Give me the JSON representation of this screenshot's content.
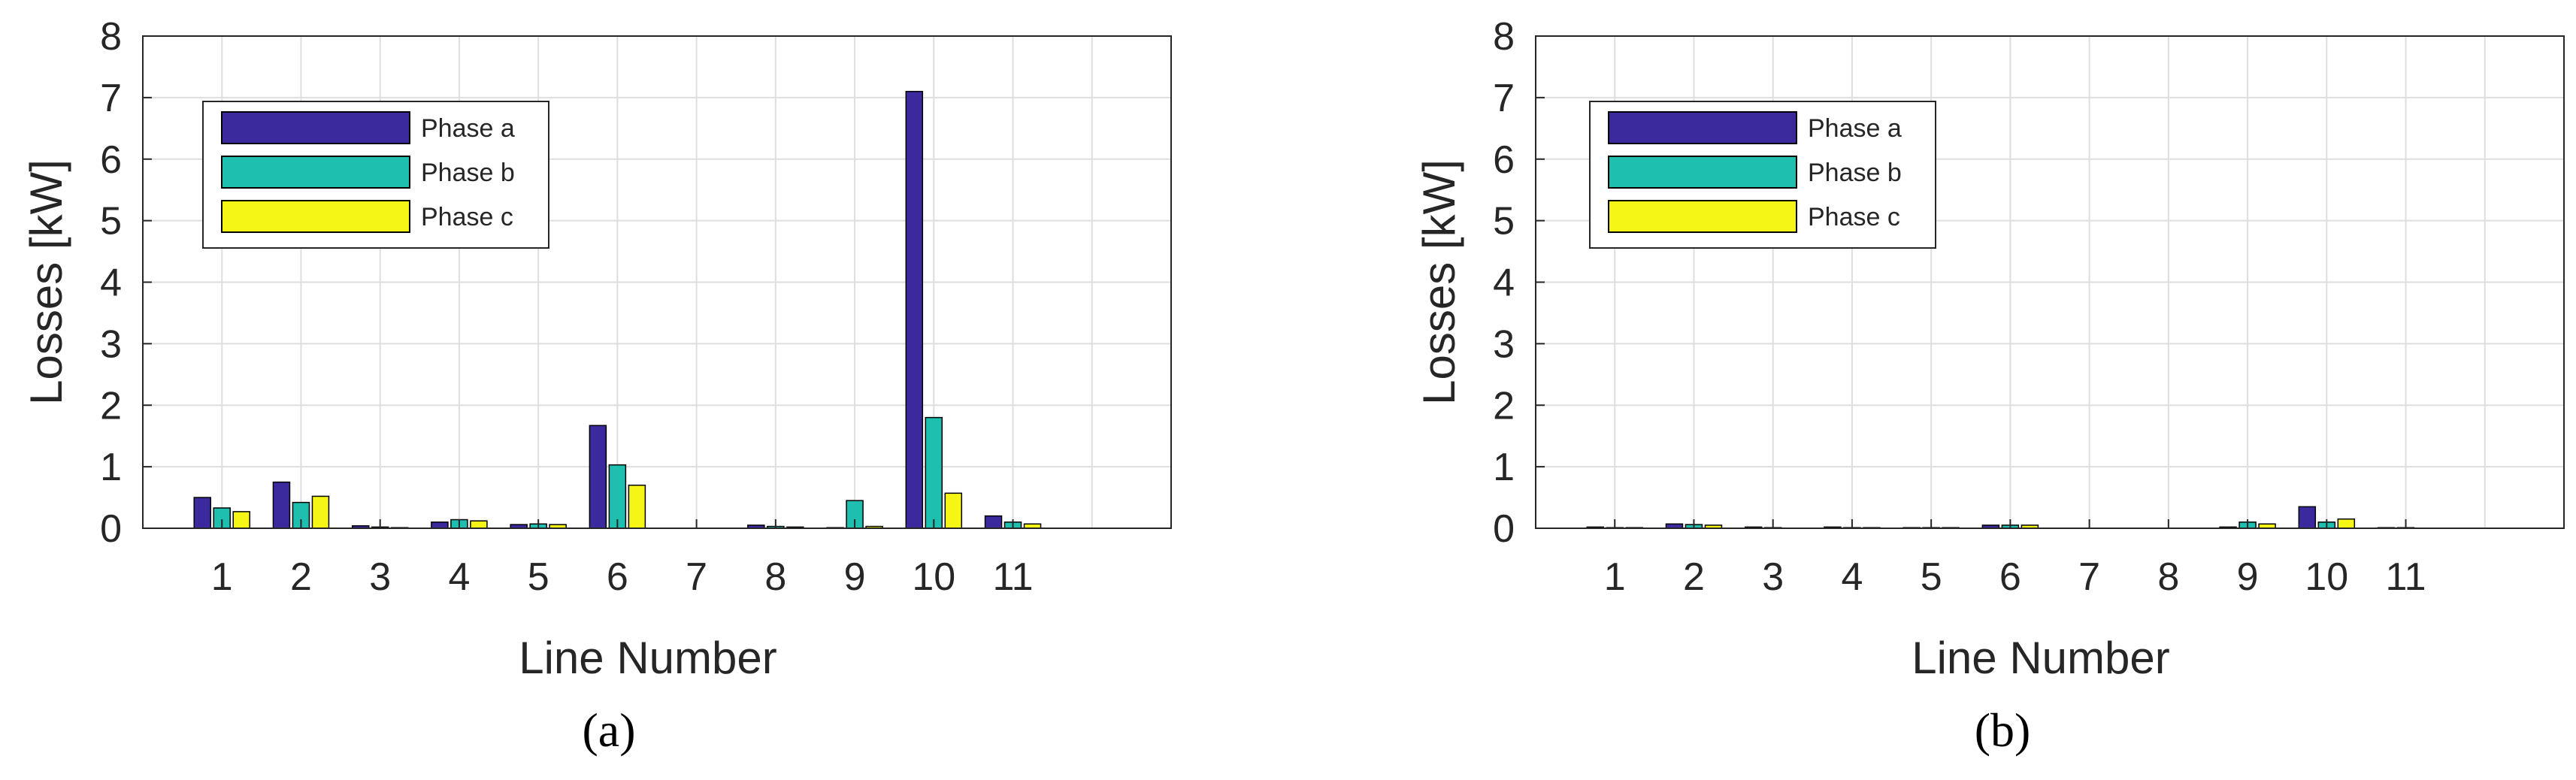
{
  "chart_data": [
    {
      "type": "bar",
      "panel_label": "(a)",
      "xlabel": "Line Number",
      "ylabel": "Losses [kW]",
      "ylim": [
        0,
        8
      ],
      "yticks": [
        "0",
        "1",
        "2",
        "3",
        "4",
        "5",
        "6",
        "7",
        "8"
      ],
      "categories": [
        "1",
        "2",
        "3",
        "4",
        "5",
        "6",
        "7",
        "8",
        "9",
        "10",
        "11"
      ],
      "grid": true,
      "legend_position": "top-left",
      "series": [
        {
          "name": "Phase a",
          "color": "#3a2a9e",
          "values": [
            0.5,
            0.75,
            0.04,
            0.1,
            0.06,
            1.67,
            0.0,
            0.05,
            0.01,
            7.1,
            0.2
          ]
        },
        {
          "name": "Phase b",
          "color": "#1fbfb0",
          "values": [
            0.33,
            0.42,
            0.02,
            0.14,
            0.07,
            1.03,
            0.0,
            0.03,
            0.45,
            1.8,
            0.1
          ]
        },
        {
          "name": "Phase c",
          "color": "#f5f516",
          "values": [
            0.27,
            0.52,
            0.01,
            0.12,
            0.06,
            0.7,
            0.0,
            0.02,
            0.03,
            0.57,
            0.07
          ]
        }
      ]
    },
    {
      "type": "bar",
      "panel_label": "(b)",
      "xlabel": "Line Number",
      "ylabel": "Losses [kW]",
      "ylim": [
        0,
        8
      ],
      "yticks": [
        "0",
        "1",
        "2",
        "3",
        "4",
        "5",
        "6",
        "7",
        "8"
      ],
      "categories": [
        "1",
        "2",
        "3",
        "4",
        "5",
        "6",
        "7",
        "8",
        "9",
        "10",
        "11"
      ],
      "grid": true,
      "legend_position": "top-left",
      "series": [
        {
          "name": "Phase a",
          "color": "#3a2a9e",
          "values": [
            0.02,
            0.07,
            0.02,
            0.02,
            0.01,
            0.05,
            0.0,
            0.0,
            0.02,
            0.35,
            0.01
          ]
        },
        {
          "name": "Phase b",
          "color": "#1fbfb0",
          "values": [
            0.01,
            0.06,
            0.01,
            0.01,
            0.01,
            0.05,
            0.0,
            0.0,
            0.1,
            0.1,
            0.01
          ]
        },
        {
          "name": "Phase c",
          "color": "#f5f516",
          "values": [
            0.01,
            0.05,
            0.0,
            0.01,
            0.01,
            0.05,
            0.0,
            0.0,
            0.07,
            0.15,
            0.0
          ]
        }
      ]
    }
  ]
}
